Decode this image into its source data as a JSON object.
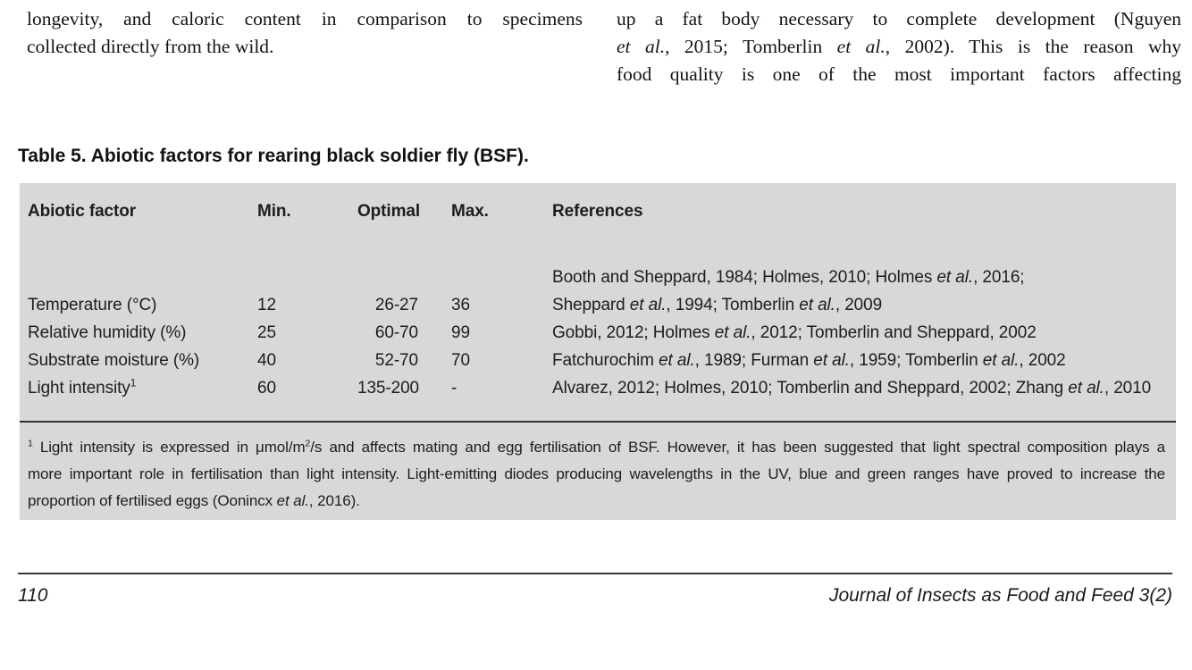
{
  "intro": {
    "left": {
      "line1": "longevity, and caloric content in comparison to specimens",
      "line2": "collected directly from the wild."
    },
    "right": {
      "line1": [
        {
          "t": "up a fat body necessary to complete development (Nguyen"
        }
      ],
      "line2": [
        {
          "t": "et al.",
          "i": true
        },
        {
          "t": ", 2015; Tomberlin "
        },
        {
          "t": "et al.",
          "i": true
        },
        {
          "t": ", 2002). This is the reason why"
        }
      ],
      "line3": [
        {
          "t": "food quality is one of the most important factors affecting"
        }
      ]
    }
  },
  "table": {
    "title": "Table 5. Abiotic factors for rearing black soldier fly (BSF).",
    "headers": {
      "factor": "Abiotic factor",
      "min": "Min.",
      "optimal": "Optimal",
      "max": "Max.",
      "references": "References"
    },
    "rows": [
      {
        "factor": [
          {
            "t": "Temperature (°C)"
          }
        ],
        "min": "12",
        "optimal": "26-27",
        "max": "36",
        "ref_line1": [
          {
            "t": "Booth and Sheppard, 1984; Holmes, 2010; Holmes "
          },
          {
            "t": "et al.",
            "i": true
          },
          {
            "t": ", 2016;"
          }
        ],
        "ref_line2": [
          {
            "t": "Sheppard "
          },
          {
            "t": "et al.",
            "i": true
          },
          {
            "t": ", 1994; Tomberlin "
          },
          {
            "t": "et al.",
            "i": true
          },
          {
            "t": ", 2009"
          }
        ]
      },
      {
        "factor": [
          {
            "t": "Relative humidity (%)"
          }
        ],
        "min": "25",
        "optimal": "60-70",
        "max": "99",
        "ref_line1": [
          {
            "t": "Gobbi, 2012; Holmes "
          },
          {
            "t": "et al.",
            "i": true
          },
          {
            "t": ", 2012; Tomberlin and Sheppard, 2002"
          }
        ]
      },
      {
        "factor": [
          {
            "t": "Substrate moisture (%)"
          }
        ],
        "min": "40",
        "optimal": "52-70",
        "max": "70",
        "ref_line1": [
          {
            "t": "Fatchurochim "
          },
          {
            "t": "et al.",
            "i": true
          },
          {
            "t": ", 1989; Furman "
          },
          {
            "t": "et al.",
            "i": true
          },
          {
            "t": ", 1959; Tomberlin "
          },
          {
            "t": "et al.",
            "i": true
          },
          {
            "t": ", 2002"
          }
        ]
      },
      {
        "factor": [
          {
            "t": "Light intensity"
          },
          {
            "t": "1",
            "sup": true
          }
        ],
        "min": "60",
        "optimal": "135-200",
        "max": "-",
        "ref_line1": [
          {
            "t": "Alvarez, 2012; Holmes, 2010; Tomberlin and Sheppard, 2002; Zhang "
          },
          {
            "t": "et al.",
            "i": true
          },
          {
            "t": ", 2010"
          }
        ]
      }
    ],
    "footnote": {
      "line1": [
        {
          "t": "1",
          "sup": true
        },
        {
          "t": " Light intensity is expressed in μmol/m"
        },
        {
          "t": "2",
          "sup": true
        },
        {
          "t": "/s and affects mating and egg fertilisation of BSF. However, it has been suggested that light spectral composition plays a"
        }
      ],
      "line2": [
        {
          "t": "more important role in fertilisation than light intensity. Light-emitting diodes producing wavelengths in the UV, blue and green ranges have proved to increase the"
        }
      ],
      "line3": [
        {
          "t": "proportion of fertilised eggs (Oonincx "
        },
        {
          "t": "et al.",
          "i": true
        },
        {
          "t": ", 2016)."
        }
      ]
    }
  },
  "footer": {
    "page_number": "110",
    "journal": "Journal of Insects as Food and Feed 3(2)"
  },
  "colors": {
    "table_background": "#d8d8d8",
    "rule": "#2f2f2f",
    "text": "#1c1c1c"
  }
}
